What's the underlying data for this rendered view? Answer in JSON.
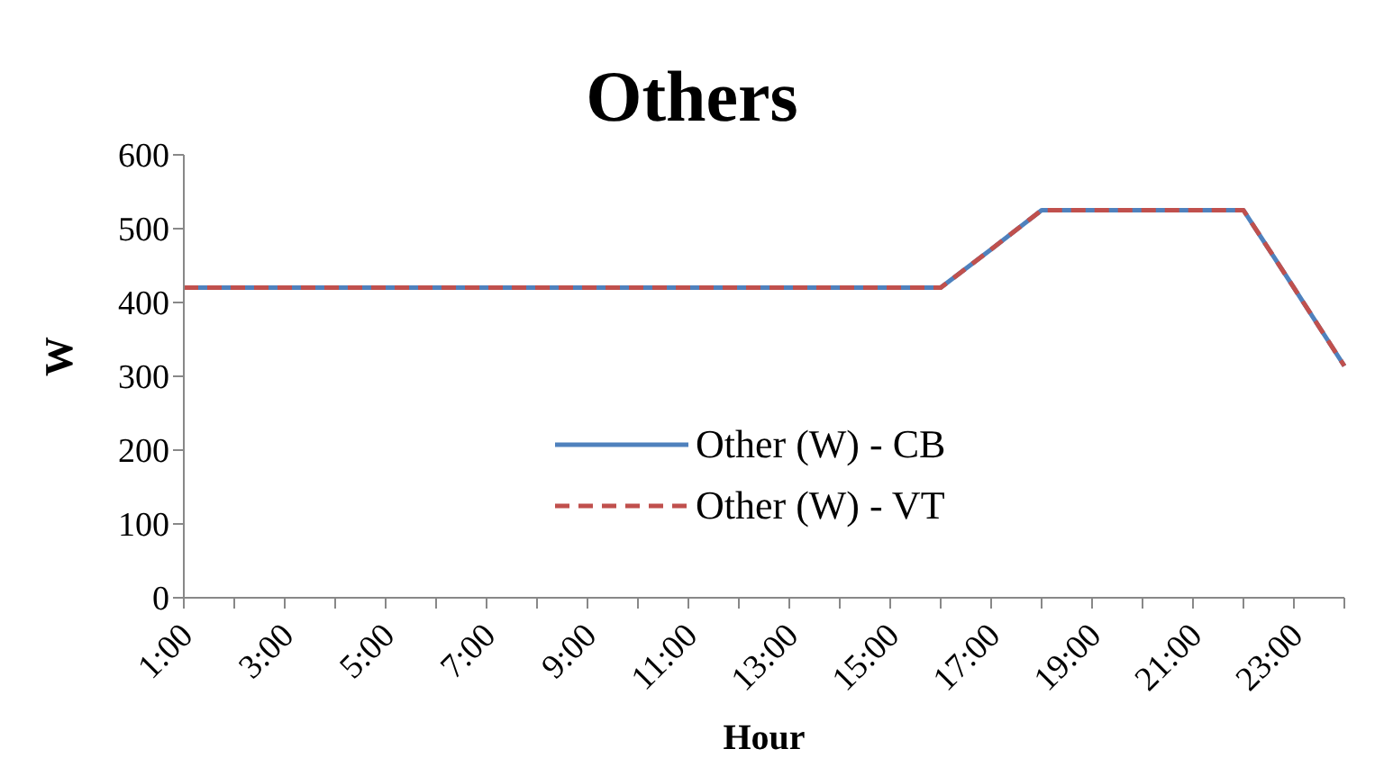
{
  "chart_data": {
    "type": "line",
    "title": "Others",
    "xlabel": "Hour",
    "ylabel": "W",
    "categories": [
      "1:00",
      null,
      "3:00",
      null,
      "5:00",
      null,
      "7:00",
      null,
      "9:00",
      null,
      "11:00",
      null,
      "13:00",
      null,
      "15:00",
      null,
      "17:00",
      null,
      "19:00",
      null,
      "21:00",
      null,
      "23:00",
      null
    ],
    "series": [
      {
        "name": "Other (W) - CB",
        "color": "#4f81bd",
        "line_style": "solid",
        "values": [
          420,
          420,
          420,
          420,
          420,
          420,
          420,
          420,
          420,
          420,
          420,
          420,
          420,
          420,
          420,
          420,
          472,
          525,
          525,
          525,
          525,
          525,
          420,
          314
        ]
      },
      {
        "name": "Other (W) - VT",
        "color": "#c0504d",
        "line_style": "dashed",
        "values": [
          420,
          420,
          420,
          420,
          420,
          420,
          420,
          420,
          420,
          420,
          420,
          420,
          420,
          420,
          420,
          420,
          472,
          525,
          525,
          525,
          525,
          525,
          420,
          314
        ]
      }
    ],
    "ylim": [
      0,
      600
    ],
    "yticks": [
      0,
      100,
      200,
      300,
      400,
      500,
      600
    ],
    "grid": false,
    "legend": "bottom",
    "marker": "none"
  }
}
